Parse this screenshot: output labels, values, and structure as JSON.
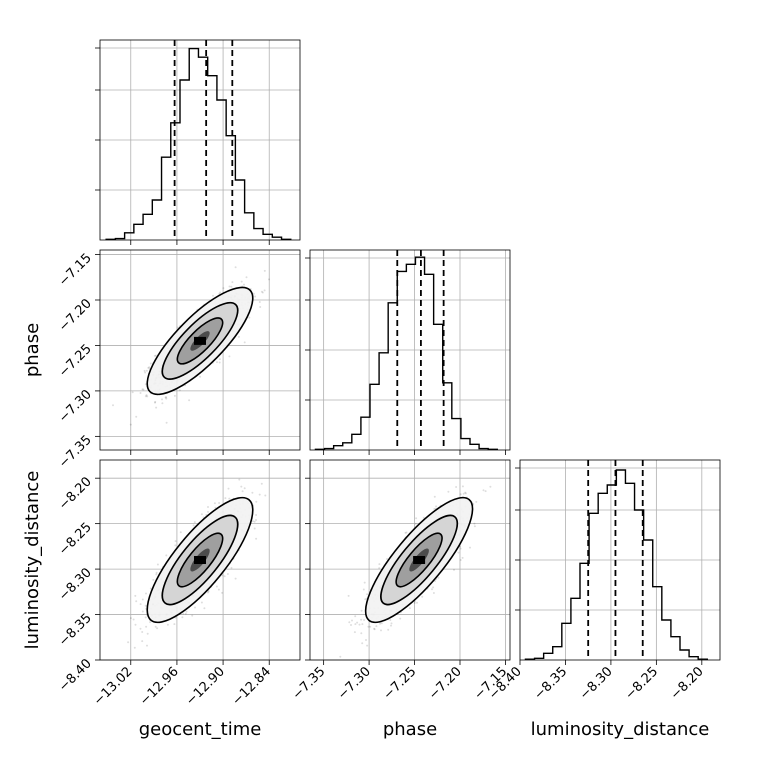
{
  "chart_data": {
    "type": "corner",
    "parameters": [
      {
        "name": "geocent_time",
        "label": "geocent_time"
      },
      {
        "name": "phase",
        "label": "phase"
      },
      {
        "name": "luminosity_distance",
        "label": "luminosity_distance"
      }
    ],
    "grid": true,
    "diagonal_histograms": [
      {
        "parameter": "geocent_time",
        "type": "step-histogram",
        "xlim": [
          -13.06,
          -12.8
        ],
        "x_ticks": [
          -13.02,
          -12.96,
          -12.9,
          -12.84
        ],
        "x_tick_labels": [
          "−13.02",
          "−12.96",
          "−12.90",
          "−12.84"
        ],
        "bin_edges": [
          -13.052,
          -13.04,
          -13.028,
          -13.016,
          -13.004,
          -12.992,
          -12.98,
          -12.968,
          -12.956,
          -12.944,
          -12.932,
          -12.92,
          -12.908,
          -12.896,
          -12.884,
          -12.872,
          -12.86,
          -12.848,
          -12.836,
          -12.824,
          -12.812
        ],
        "counts": [
          0.5,
          1,
          5,
          11,
          18,
          28,
          58,
          82,
          112,
          134,
          128,
          115,
          98,
          73,
          42,
          19,
          8,
          4,
          2,
          0.5
        ],
        "count_max": 140,
        "quantiles": [
          -12.963,
          -12.922,
          -12.888
        ]
      },
      {
        "parameter": "phase",
        "type": "step-histogram",
        "xlim": [
          -7.365,
          -7.145
        ],
        "x_ticks": [
          -7.35,
          -7.3,
          -7.25,
          -7.2,
          -7.15
        ],
        "x_tick_labels": [
          "−7.35",
          "−7.30",
          "−7.25",
          "−7.20",
          "−7.15"
        ],
        "bin_edges": [
          -7.359,
          -7.349,
          -7.339,
          -7.329,
          -7.319,
          -7.309,
          -7.299,
          -7.289,
          -7.279,
          -7.269,
          -7.259,
          -7.249,
          -7.239,
          -7.229,
          -7.219,
          -7.209,
          -7.199,
          -7.189,
          -7.179,
          -7.169,
          -7.159
        ],
        "counts": [
          0.5,
          1,
          3,
          5,
          11,
          23,
          46,
          68,
          103,
          125,
          130,
          135,
          123,
          88,
          47,
          22,
          8,
          4,
          1,
          0.5
        ],
        "count_max": 140,
        "quantiles": [
          -7.269,
          -7.243,
          -7.218
        ]
      },
      {
        "parameter": "luminosity_distance",
        "type": "step-histogram",
        "xlim": [
          -8.4,
          -8.18
        ],
        "x_ticks": [
          -8.4,
          -8.35,
          -8.3,
          -8.25,
          -8.2
        ],
        "x_tick_labels": [
          "−8.40",
          "−8.35",
          "−8.30",
          "−8.25",
          "−8.20"
        ],
        "bin_edges": [
          -8.394,
          -8.384,
          -8.374,
          -8.364,
          -8.354,
          -8.344,
          -8.334,
          -8.324,
          -8.314,
          -8.304,
          -8.294,
          -8.284,
          -8.274,
          -8.264,
          -8.254,
          -8.244,
          -8.234,
          -8.224,
          -8.214,
          -8.204,
          -8.194
        ],
        "counts": [
          0.5,
          1,
          4,
          8,
          22,
          37,
          58,
          88,
          100,
          105,
          114,
          106,
          90,
          72,
          44,
          24,
          14,
          6,
          2,
          0.5
        ],
        "count_max": 120,
        "quantiles": [
          -8.325,
          -8.295,
          -8.265
        ]
      }
    ],
    "off_diagonal": [
      {
        "x_parameter": "geocent_time",
        "y_parameter": "phase",
        "type": "2d-density",
        "xlim": [
          -13.06,
          -12.8
        ],
        "ylim": [
          -7.365,
          -7.145
        ],
        "y_ticks": [
          -7.35,
          -7.3,
          -7.25,
          -7.2,
          -7.15
        ],
        "y_tick_labels": [
          "−7.35",
          "−7.30",
          "−7.25",
          "−7.20",
          "−7.15"
        ],
        "center": [
          -12.93,
          -7.245
        ],
        "spread": [
          0.028,
          0.024
        ],
        "correlation": 0.8
      },
      {
        "x_parameter": "geocent_time",
        "y_parameter": "luminosity_distance",
        "type": "2d-density",
        "xlim": [
          -13.06,
          -12.8
        ],
        "ylim": [
          -8.4,
          -8.18
        ],
        "y_ticks": [
          -8.4,
          -8.35,
          -8.3,
          -8.25,
          -8.2
        ],
        "y_tick_labels": [
          "−8.40",
          "−8.35",
          "−8.30",
          "−8.25",
          "−8.20"
        ],
        "center": [
          -12.93,
          -8.29
        ],
        "spread": [
          0.028,
          0.028
        ],
        "correlation": 0.8
      },
      {
        "x_parameter": "phase",
        "y_parameter": "luminosity_distance",
        "type": "2d-density",
        "xlim": [
          -7.365,
          -7.145
        ],
        "ylim": [
          -8.4,
          -8.18
        ],
        "center": [
          -7.245,
          -8.29
        ],
        "spread": [
          0.024,
          0.028
        ],
        "correlation": 0.82
      }
    ]
  }
}
